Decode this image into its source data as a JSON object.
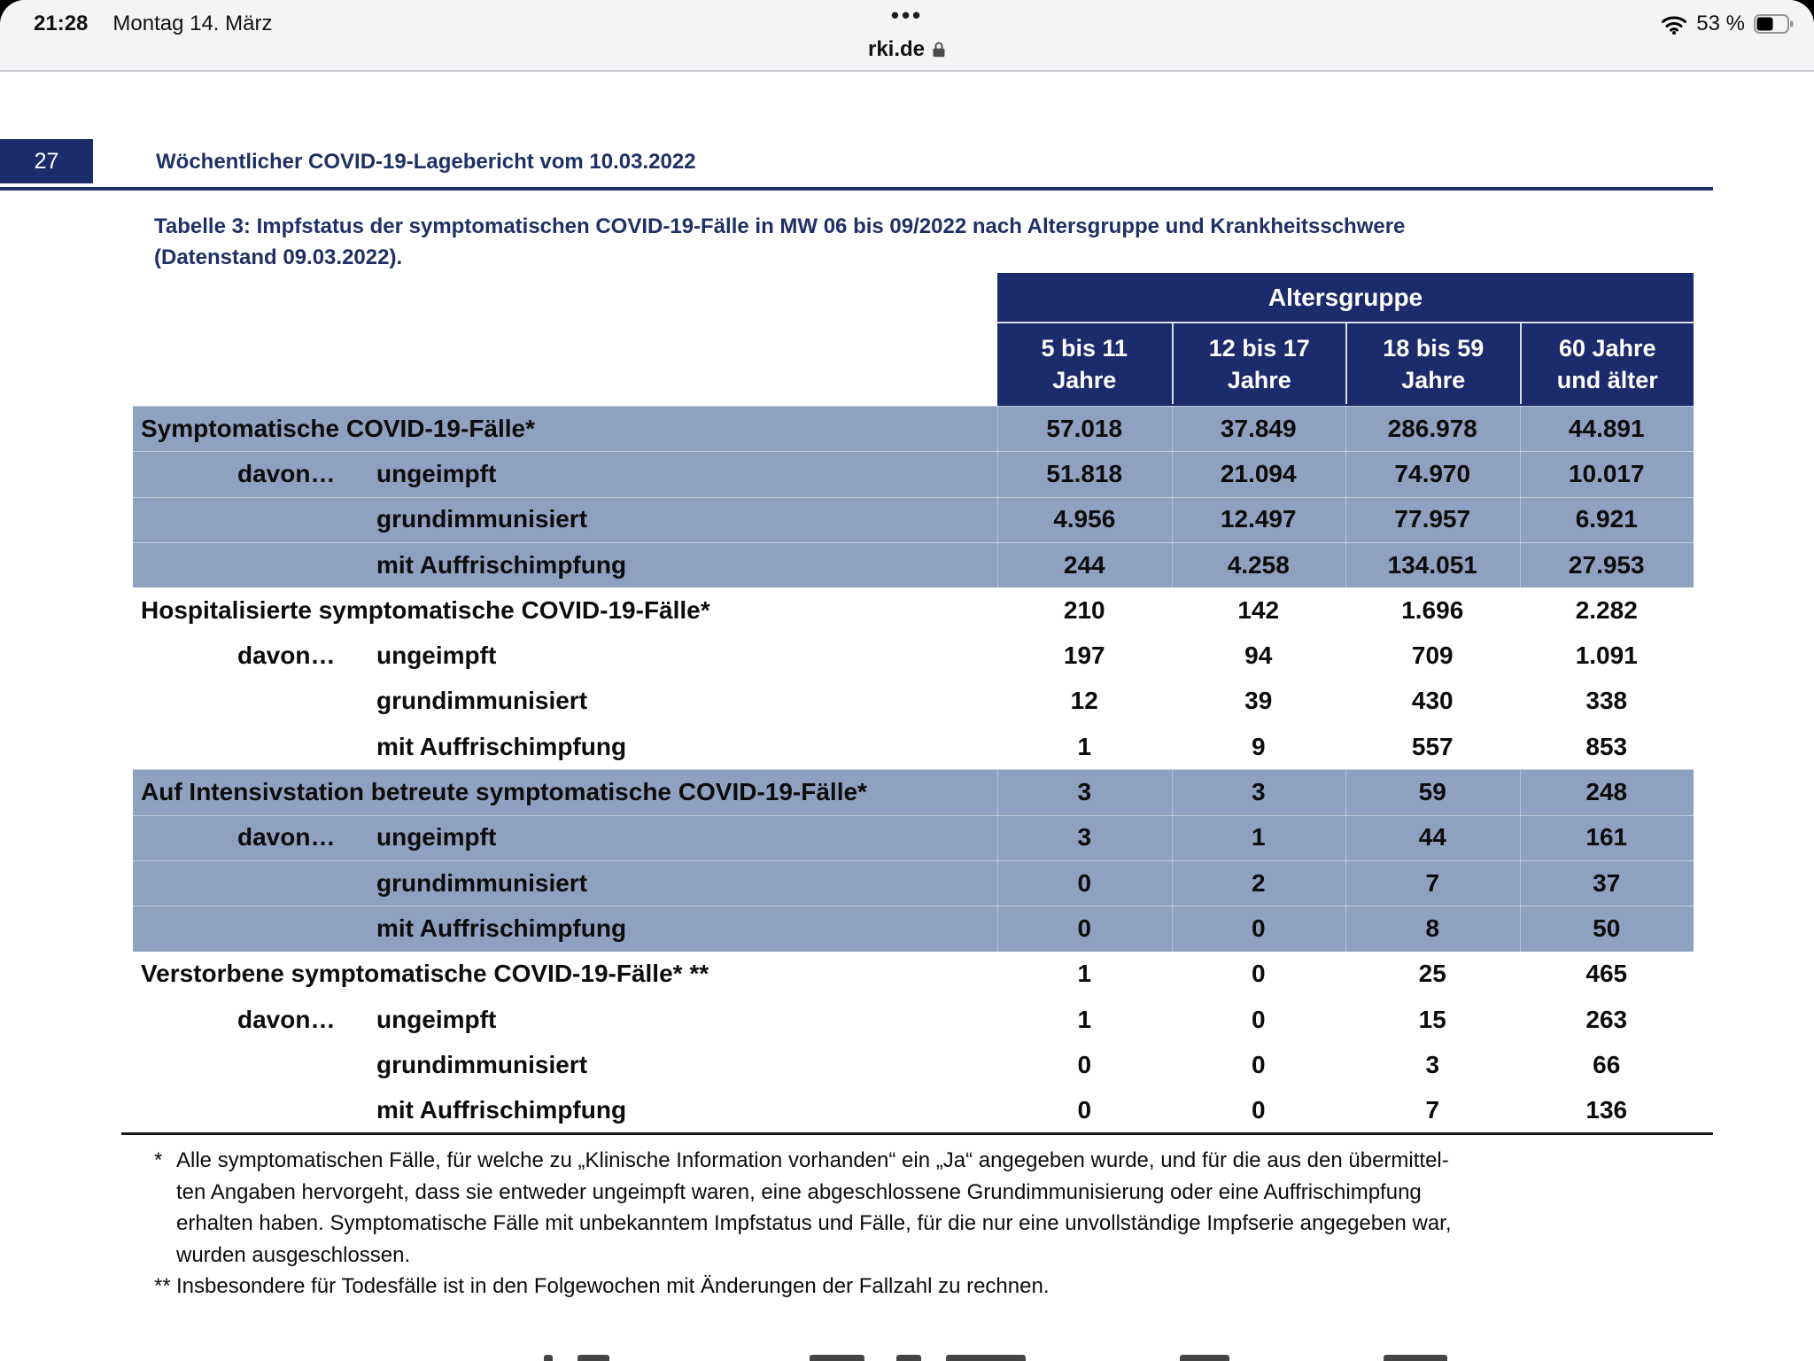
{
  "status_bar": {
    "time": "21:28",
    "date": "Montag 14. März",
    "tab_dots": "•••",
    "site": "rki.de",
    "battery_percent": "53 %",
    "icons": [
      "lock-icon",
      "wifi-icon",
      "battery-icon"
    ]
  },
  "page": {
    "number": "27",
    "header_title": "Wöchentlicher COVID-19-Lagebericht vom 10.03.2022",
    "caption_line1": "Tabelle 3: Impfstatus der symptomatischen COVID-19-Fälle in MW 06 bis 09/2022 nach Altersgruppe und Krankheitsschwere",
    "caption_line2": "(Datenstand 09.03.2022)."
  },
  "table": {
    "group_header": "Altersgruppe",
    "columns": [
      {
        "line1": "5 bis 11",
        "line2": "Jahre"
      },
      {
        "line1": "12 bis 17",
        "line2": "Jahre"
      },
      {
        "line1": "18 bis 59",
        "line2": "Jahre"
      },
      {
        "line1": "60 Jahre",
        "line2": "und älter"
      }
    ],
    "davon_label": "davon…",
    "rows": [
      {
        "label": "Symptomatische COVID-19-Fälle*",
        "level": "main",
        "shaded": true,
        "values": [
          "57.018",
          "37.849",
          "286.978",
          "44.891"
        ]
      },
      {
        "label": "ungeimpft",
        "level": "sub",
        "davon": true,
        "shaded": true,
        "values": [
          "51.818",
          "21.094",
          "74.970",
          "10.017"
        ]
      },
      {
        "label": "grundimmunisiert",
        "level": "sub",
        "shaded": true,
        "values": [
          "4.956",
          "12.497",
          "77.957",
          "6.921"
        ]
      },
      {
        "label": "mit Auffrischimpfung",
        "level": "sub",
        "shaded": true,
        "values": [
          "244",
          "4.258",
          "134.051",
          "27.953"
        ]
      },
      {
        "label": "Hospitalisierte symptomatische COVID-19-Fälle*",
        "level": "main",
        "shaded": false,
        "values": [
          "210",
          "142",
          "1.696",
          "2.282"
        ]
      },
      {
        "label": "ungeimpft",
        "level": "sub",
        "davon": true,
        "shaded": false,
        "values": [
          "197",
          "94",
          "709",
          "1.091"
        ]
      },
      {
        "label": "grundimmunisiert",
        "level": "sub",
        "shaded": false,
        "values": [
          "12",
          "39",
          "430",
          "338"
        ]
      },
      {
        "label": "mit Auffrischimpfung",
        "level": "sub",
        "shaded": false,
        "values": [
          "1",
          "9",
          "557",
          "853"
        ]
      },
      {
        "label": "Auf Intensivstation betreute symptomatische COVID-19-Fälle*",
        "level": "main",
        "shaded": true,
        "values": [
          "3",
          "3",
          "59",
          "248"
        ]
      },
      {
        "label": "ungeimpft",
        "level": "sub",
        "davon": true,
        "shaded": true,
        "values": [
          "3",
          "1",
          "44",
          "161"
        ]
      },
      {
        "label": "grundimmunisiert",
        "level": "sub",
        "shaded": true,
        "values": [
          "0",
          "2",
          "7",
          "37"
        ]
      },
      {
        "label": "mit Auffrischimpfung",
        "level": "sub",
        "shaded": true,
        "values": [
          "0",
          "0",
          "8",
          "50"
        ]
      },
      {
        "label": "Verstorbene symptomatische COVID-19-Fälle* **",
        "level": "main",
        "shaded": false,
        "values": [
          "1",
          "0",
          "25",
          "465"
        ]
      },
      {
        "label": "ungeimpft",
        "level": "sub",
        "davon": true,
        "shaded": false,
        "values": [
          "1",
          "0",
          "15",
          "263"
        ]
      },
      {
        "label": "grundimmunisiert",
        "level": "sub",
        "shaded": false,
        "values": [
          "0",
          "0",
          "3",
          "66"
        ]
      },
      {
        "label": "mit Auffrischimpfung",
        "level": "sub",
        "shaded": false,
        "values": [
          "0",
          "0",
          "7",
          "136"
        ]
      }
    ]
  },
  "footnotes": {
    "marker1": "*",
    "lines1": [
      "Alle symptomatischen Fälle, für welche zu „Klinische Information vorhanden“ ein „Ja“ angegeben wurde, und für die aus den übermittel-",
      "ten Angaben hervorgeht, dass sie entweder ungeimpft waren, eine abgeschlossene Grundimmunisierung oder eine Auffrischimpfung",
      "erhalten haben. Symptomatische Fälle mit unbekanntem Impfstatus und Fälle, für die nur eine unvollständige Impfserie angegeben war,",
      "wurden ausgeschlossen."
    ],
    "marker2": "**",
    "lines2": [
      "Insbesondere für Todesfälle ist in den Folgewochen mit Änderungen der Fallzahl zu rechnen."
    ]
  },
  "colors": {
    "navy": "#1b2b6b",
    "navy_text": "#1e3166",
    "row_shade": "#8fa1c1"
  }
}
